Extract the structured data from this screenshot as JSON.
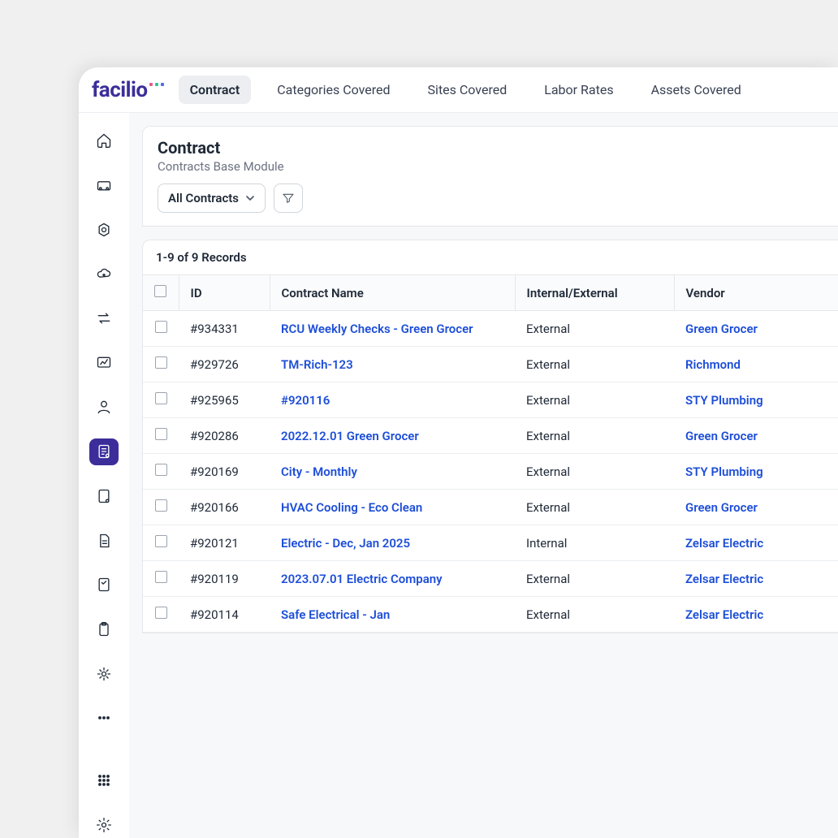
{
  "brand": {
    "name": "facilio",
    "color": "#3b2e9a",
    "dot_colors": [
      "#e85c8d",
      "#34c38f",
      "#4f6cf5"
    ]
  },
  "tabs": [
    {
      "label": "Contract",
      "active": true
    },
    {
      "label": "Categories Covered",
      "active": false
    },
    {
      "label": "Sites Covered",
      "active": false
    },
    {
      "label": "Labor Rates",
      "active": false
    },
    {
      "label": "Assets Covered",
      "active": false
    }
  ],
  "sidebar": {
    "active_index": 7,
    "items": [
      {
        "name": "home-icon"
      },
      {
        "name": "inbox-icon"
      },
      {
        "name": "settings-gear-icon"
      },
      {
        "name": "cloud-icon"
      },
      {
        "name": "swap-icon"
      },
      {
        "name": "dashboard-icon"
      },
      {
        "name": "user-icon"
      },
      {
        "name": "contracts-icon"
      },
      {
        "name": "note-icon"
      },
      {
        "name": "document-icon"
      },
      {
        "name": "checklist-icon"
      },
      {
        "name": "clipboard-icon"
      },
      {
        "name": "automation-icon"
      },
      {
        "name": "more-icon"
      }
    ],
    "footer": [
      {
        "name": "apps-icon"
      },
      {
        "name": "settings-icon"
      }
    ]
  },
  "header": {
    "title": "Contract",
    "subtitle": "Contracts Base Module",
    "dropdown_label": "All Contracts"
  },
  "table": {
    "record_count": "1-9 of 9 Records",
    "columns": [
      "ID",
      "Contract Name",
      "Internal/External",
      "Vendor"
    ],
    "rows": [
      {
        "id": "#934331",
        "name": "RCU Weekly Checks - Green Grocer",
        "ie": "External",
        "vendor": "Green Grocer"
      },
      {
        "id": "#929726",
        "name": "TM-Rich-123",
        "ie": "External",
        "vendor": "Richmond"
      },
      {
        "id": "#925965",
        "name": "#920116",
        "ie": "External",
        "vendor": "STY Plumbing"
      },
      {
        "id": "#920286",
        "name": "2022.12.01 Green Grocer",
        "ie": "External",
        "vendor": "Green Grocer"
      },
      {
        "id": "#920169",
        "name": "City - Monthly",
        "ie": "External",
        "vendor": "STY Plumbing"
      },
      {
        "id": "#920166",
        "name": "HVAC Cooling - Eco Clean",
        "ie": "External",
        "vendor": "Green Grocer"
      },
      {
        "id": "#920121",
        "name": "Electric - Dec, Jan 2025",
        "ie": "Internal",
        "vendor": "Zelsar Electric"
      },
      {
        "id": "#920119",
        "name": "2023.07.01 Electric Company",
        "ie": "External",
        "vendor": "Zelsar Electric"
      },
      {
        "id": "#920114",
        "name": "Safe Electrical - Jan",
        "ie": "External",
        "vendor": "Zelsar Electric"
      }
    ]
  },
  "colors": {
    "link": "#1d4ed8",
    "text": "#1f2937",
    "muted": "#6b7280",
    "border": "#e5e7eb",
    "active_bg": "#3b2e9a"
  }
}
